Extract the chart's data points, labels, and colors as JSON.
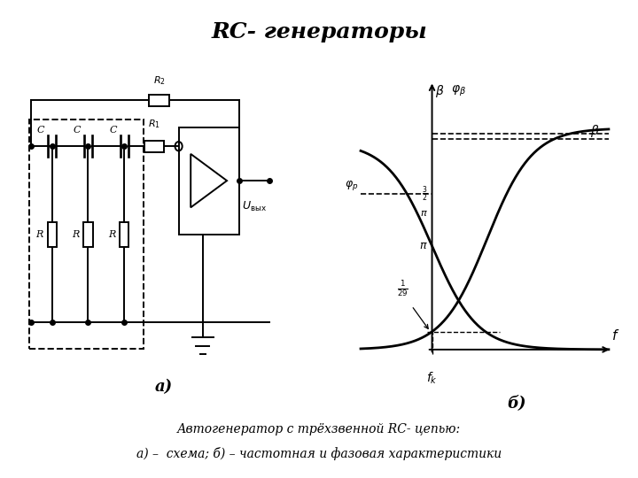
{
  "title": "RC- генераторы",
  "title_fontsize": 18,
  "caption_line1": "Автогенератор с трёхзвенной RC- цепью:",
  "caption_line2": "а) –  схема; б) – частотная и фазовая характеристики",
  "label_a": "а)",
  "label_b": "б)",
  "background_color": "#ffffff",
  "line_color": "#000000"
}
